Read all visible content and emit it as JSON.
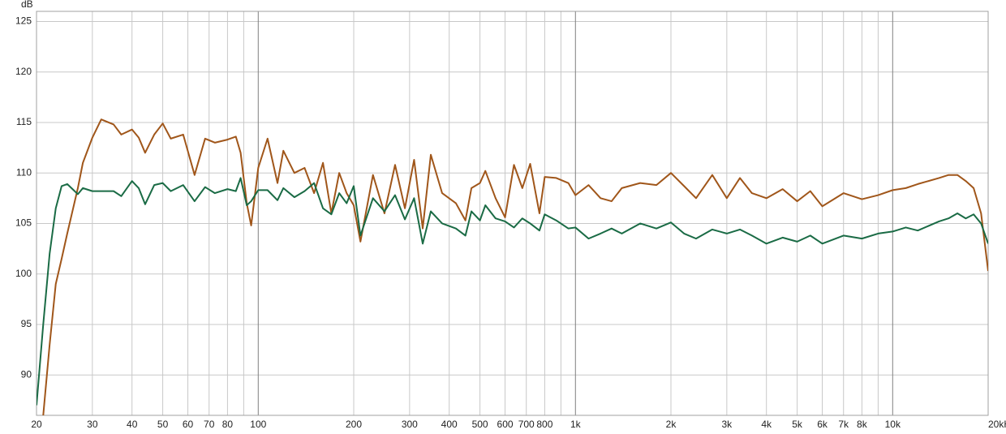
{
  "chart_data": {
    "type": "line",
    "ylabel": "dB",
    "xscale": "log",
    "grid": true,
    "xlim": [
      20,
      20000
    ],
    "ylim": [
      86,
      126
    ],
    "yticks": [
      90,
      95,
      100,
      105,
      110,
      115,
      120,
      125
    ],
    "xticks": [
      20,
      30,
      40,
      50,
      60,
      70,
      80,
      100,
      200,
      300,
      400,
      500,
      600,
      700,
      800,
      {
        "value": 1000,
        "label": "1k"
      },
      {
        "value": 2000,
        "label": "2k"
      },
      {
        "value": 3000,
        "label": "3k"
      },
      {
        "value": 4000,
        "label": "4k"
      },
      {
        "value": 5000,
        "label": "5k"
      },
      {
        "value": 6000,
        "label": "6k"
      },
      {
        "value": 7000,
        "label": "7k"
      },
      {
        "value": 8000,
        "label": "8k"
      },
      {
        "value": 10000,
        "label": "10k"
      },
      {
        "value": 20000,
        "label": "20kHz"
      }
    ],
    "xgrid_minor": [
      90,
      900,
      9000
    ],
    "x": [
      20,
      21,
      22,
      23,
      24,
      25,
      27,
      28,
      30,
      32,
      35,
      37,
      40,
      42,
      44,
      47,
      50,
      53,
      58,
      63,
      68,
      73,
      80,
      85,
      88,
      92,
      95,
      100,
      107,
      115,
      120,
      130,
      140,
      150,
      160,
      170,
      180,
      190,
      200,
      210,
      230,
      250,
      270,
      290,
      310,
      330,
      350,
      380,
      420,
      450,
      470,
      500,
      520,
      560,
      600,
      640,
      680,
      720,
      770,
      800,
      870,
      950,
      1000,
      1100,
      1200,
      1300,
      1400,
      1600,
      1800,
      2000,
      2200,
      2400,
      2700,
      3000,
      3300,
      3600,
      4000,
      4500,
      5000,
      5500,
      6000,
      7000,
      8000,
      9000,
      10000,
      11000,
      12000,
      14000,
      15000,
      16000,
      17000,
      18000,
      19000,
      20000
    ],
    "series": [
      {
        "color": "#a0561a",
        "values": [
          null,
          86,
          93,
          99,
          101.5,
          104,
          108.5,
          111,
          113.5,
          115.3,
          114.8,
          113.8,
          114.3,
          113.5,
          112,
          113.8,
          114.9,
          113.4,
          113.8,
          109.8,
          113.4,
          113,
          113.3,
          113.6,
          112,
          107,
          104.8,
          110.5,
          113.4,
          109,
          112.2,
          110,
          110.5,
          108,
          111,
          106,
          110,
          108,
          106.8,
          103.2,
          109.8,
          106,
          110.8,
          106.5,
          111.3,
          104.5,
          111.8,
          108,
          107,
          105.3,
          108.5,
          109,
          110.2,
          107.5,
          105.6,
          110.8,
          108.5,
          110.9,
          106,
          109.6,
          109.5,
          109,
          107.8,
          108.8,
          107.5,
          107.2,
          108.5,
          109,
          108.8,
          110,
          108.7,
          107.5,
          109.8,
          107.5,
          109.5,
          108,
          107.5,
          108.4,
          107.2,
          108.2,
          106.7,
          108,
          107.4,
          107.8,
          108.3,
          108.5,
          108.9,
          109.5,
          109.8,
          109.8,
          109.2,
          108.5,
          106,
          100.3
        ]
      },
      {
        "color": "#1a6b45",
        "values": [
          87,
          95,
          102,
          106.5,
          108.7,
          108.9,
          107.9,
          108.5,
          108.2,
          108.2,
          108.2,
          107.7,
          109.2,
          108.5,
          106.9,
          108.8,
          109,
          108.2,
          108.8,
          107.2,
          108.6,
          108,
          108.4,
          108.2,
          109.5,
          106.8,
          107.2,
          108.3,
          108.3,
          107.3,
          108.5,
          107.6,
          108.2,
          109,
          106.5,
          105.9,
          108,
          107,
          108.7,
          103.8,
          107.5,
          106.2,
          107.8,
          105.4,
          107.5,
          103,
          106.2,
          105,
          104.5,
          103.8,
          106.2,
          105.3,
          106.8,
          105.5,
          105.2,
          104.6,
          105.5,
          105,
          104.3,
          105.9,
          105.3,
          104.5,
          104.6,
          103.5,
          104,
          104.5,
          104,
          105,
          104.5,
          105.1,
          104,
          103.5,
          104.4,
          104,
          104.4,
          103.8,
          103,
          103.6,
          103.2,
          103.8,
          103,
          103.8,
          103.5,
          104,
          104.2,
          104.6,
          104.3,
          105.2,
          105.5,
          106,
          105.5,
          105.9,
          105,
          103
        ]
      }
    ]
  }
}
